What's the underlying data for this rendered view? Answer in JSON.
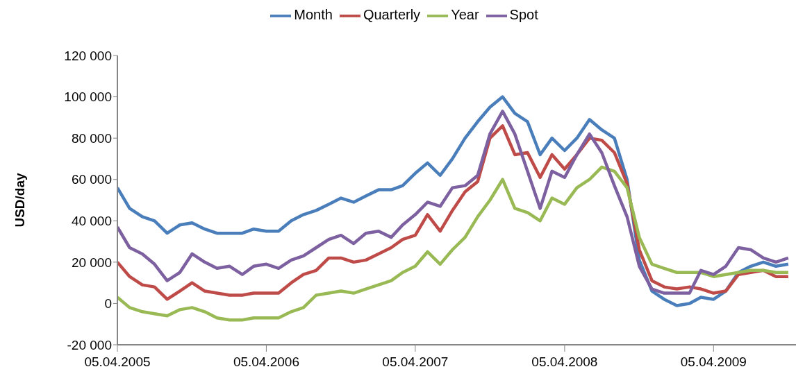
{
  "chart_data": {
    "type": "line",
    "ylabel": "USD/day",
    "legend": "top",
    "grid": false,
    "marker": "none",
    "line_style": "solid",
    "x": [
      "2005-04-05",
      "2005-05-05",
      "2005-06-05",
      "2005-07-05",
      "2005-08-05",
      "2005-09-05",
      "2005-10-05",
      "2005-11-05",
      "2005-12-05",
      "2006-01-05",
      "2006-02-05",
      "2006-03-05",
      "2006-04-05",
      "2006-05-05",
      "2006-06-05",
      "2006-07-05",
      "2006-08-05",
      "2006-09-05",
      "2006-10-05",
      "2006-11-05",
      "2006-12-05",
      "2007-01-05",
      "2007-02-05",
      "2007-03-05",
      "2007-04-05",
      "2007-05-05",
      "2007-06-05",
      "2007-07-05",
      "2007-08-05",
      "2007-09-05",
      "2007-10-05",
      "2007-11-05",
      "2007-12-05",
      "2008-01-05",
      "2008-02-05",
      "2008-03-05",
      "2008-04-05",
      "2008-05-05",
      "2008-06-05",
      "2008-07-05",
      "2008-08-05",
      "2008-09-05",
      "2008-10-05",
      "2008-11-05",
      "2008-12-05",
      "2009-01-05",
      "2009-02-05",
      "2009-03-05",
      "2009-04-05",
      "2009-05-05",
      "2009-06-05",
      "2009-07-05",
      "2009-08-05",
      "2009-09-05",
      "2009-10-05"
    ],
    "xlim": [
      "2005-04-05",
      "2009-10-24"
    ],
    "xticks": [
      {
        "value": "2005-04-05",
        "label": "05.04.2005"
      },
      {
        "value": "2006-04-05",
        "label": "05.04.2006"
      },
      {
        "value": "2007-04-05",
        "label": "05.04.2007"
      },
      {
        "value": "2008-04-05",
        "label": "05.04.2008"
      },
      {
        "value": "2009-04-05",
        "label": "05.04.2009"
      }
    ],
    "ylim": [
      -20000,
      120000
    ],
    "yticks": [
      {
        "value": -20000,
        "label": "-20 000"
      },
      {
        "value": 0,
        "label": "0"
      },
      {
        "value": 20000,
        "label": "20 000"
      },
      {
        "value": 40000,
        "label": "40 000"
      },
      {
        "value": 60000,
        "label": "60 000"
      },
      {
        "value": 80000,
        "label": "80 000"
      },
      {
        "value": 100000,
        "label": "100 000"
      },
      {
        "value": 120000,
        "label": "120 000"
      }
    ],
    "series": [
      {
        "name": "Month",
        "color": "#4a7ebb",
        "values": [
          56000,
          46000,
          42000,
          40000,
          34000,
          38000,
          39000,
          36000,
          34000,
          34000,
          34000,
          36000,
          35000,
          35000,
          40000,
          43000,
          45000,
          48000,
          51000,
          49000,
          52000,
          55000,
          55000,
          57000,
          63000,
          68000,
          62000,
          70000,
          80000,
          88000,
          95000,
          100000,
          92000,
          88000,
          72000,
          80000,
          74000,
          80000,
          89000,
          84000,
          80000,
          60000,
          21000,
          6000,
          2000,
          -1000,
          0,
          3000,
          2000,
          6000,
          15000,
          18000,
          20000,
          18000,
          19000
        ]
      },
      {
        "name": "Quarterly",
        "color": "#be4b48",
        "values": [
          20000,
          13000,
          9000,
          8000,
          2000,
          6000,
          10000,
          6000,
          5000,
          4000,
          4000,
          5000,
          5000,
          5000,
          10000,
          14000,
          16000,
          22000,
          22000,
          20000,
          21000,
          24000,
          27000,
          31000,
          33000,
          43000,
          35000,
          45000,
          54000,
          59000,
          80000,
          86000,
          72000,
          73000,
          61000,
          72000,
          65000,
          72000,
          80000,
          79000,
          73000,
          58000,
          26000,
          11000,
          8000,
          7000,
          8000,
          7000,
          5000,
          6000,
          14000,
          15000,
          16000,
          13000,
          13000
        ]
      },
      {
        "name": "Year",
        "color": "#98b954",
        "values": [
          3000,
          -2000,
          -4000,
          -5000,
          -6000,
          -3000,
          -2000,
          -4000,
          -7000,
          -8000,
          -8000,
          -7000,
          -7000,
          -7000,
          -4000,
          -2000,
          4000,
          5000,
          6000,
          5000,
          7000,
          9000,
          11000,
          15000,
          18000,
          25000,
          19000,
          26000,
          32000,
          42000,
          50000,
          60000,
          46000,
          44000,
          40000,
          51000,
          48000,
          56000,
          60000,
          66000,
          64000,
          56000,
          32000,
          19000,
          17000,
          15000,
          15000,
          15000,
          13000,
          14000,
          15000,
          16000,
          16000,
          15000,
          15000
        ]
      },
      {
        "name": "Spot",
        "color": "#7d60a0",
        "values": [
          37000,
          27000,
          24000,
          19000,
          11000,
          15000,
          24000,
          20000,
          17000,
          18000,
          14000,
          18000,
          19000,
          17000,
          21000,
          23000,
          27000,
          31000,
          33000,
          29000,
          34000,
          35000,
          32000,
          38000,
          43000,
          49000,
          47000,
          56000,
          57000,
          62000,
          82000,
          93000,
          82000,
          64000,
          46000,
          64000,
          61000,
          72000,
          82000,
          73000,
          57000,
          42000,
          18000,
          7000,
          5000,
          5000,
          5000,
          16000,
          14000,
          18000,
          27000,
          26000,
          22000,
          20000,
          22000
        ]
      }
    ]
  }
}
